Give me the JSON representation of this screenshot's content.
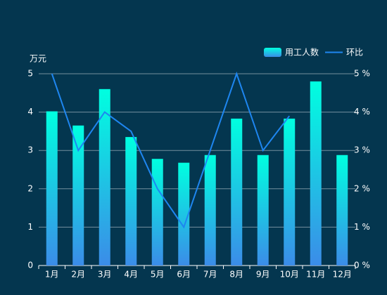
{
  "chart_data": {
    "type": "bar",
    "y_axis_label": "万元",
    "categories": [
      "1月",
      "2月",
      "3月",
      "4月",
      "5月",
      "6月",
      "7月",
      "8月",
      "9月",
      "10月",
      "11月",
      "12月"
    ],
    "series": [
      {
        "name": "用工人数",
        "type": "bar",
        "color": [
          "#00ffe0",
          "#3b8ce8"
        ],
        "values": [
          4.02,
          3.65,
          4.6,
          3.35,
          2.78,
          2.68,
          2.88,
          3.83,
          2.88,
          3.83,
          4.8,
          2.88
        ]
      },
      {
        "name": "环比",
        "type": "line",
        "axis": "y2",
        "color": "#1e86f0",
        "values": [
          5,
          3,
          4,
          3.5,
          2,
          1,
          3,
          5,
          3,
          3.9,
          null,
          null
        ]
      }
    ],
    "ylim": [
      0,
      5
    ],
    "yticks": [
      0,
      1,
      2,
      3,
      4,
      5
    ],
    "y2lim": [
      0,
      5
    ],
    "y2ticks": [
      {
        "value": 0,
        "label": "0 %"
      },
      {
        "value": 1,
        "label": "1 %"
      },
      {
        "value": 2,
        "label": "2 %"
      },
      {
        "value": 3,
        "label": "3 %"
      },
      {
        "value": 4,
        "label": "4 %"
      },
      {
        "value": 5,
        "label": "5 %"
      }
    ],
    "grid": true,
    "legend": "top-right"
  }
}
